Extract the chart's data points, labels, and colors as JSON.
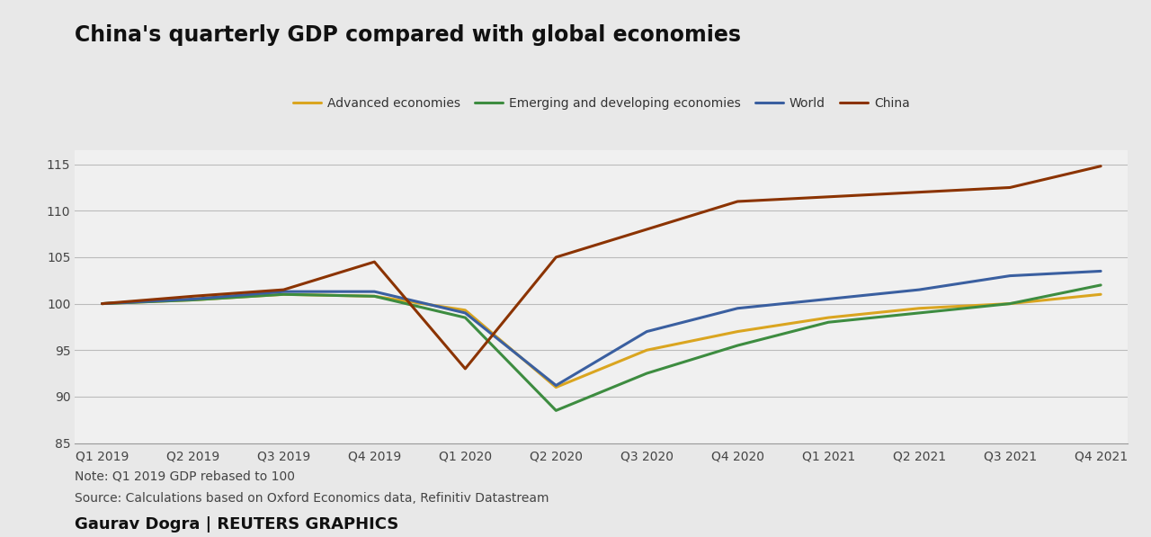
{
  "title": "China's quarterly GDP compared with global economies",
  "x_labels": [
    "Q1 2019",
    "Q2 2019",
    "Q3 2019",
    "Q4 2019",
    "Q1 2020",
    "Q2 2020",
    "Q3 2020",
    "Q4 2020",
    "Q1 2021",
    "Q2 2021",
    "Q3 2021",
    "Q4 2021"
  ],
  "series": {
    "Advanced economies": {
      "color": "#DAA520",
      "values": [
        100.0,
        100.4,
        101.0,
        100.8,
        99.3,
        91.0,
        95.0,
        97.0,
        98.5,
        99.5,
        100.0,
        101.0
      ]
    },
    "Emerging and developing economies": {
      "color": "#3d8c40",
      "values": [
        100.0,
        100.4,
        101.0,
        100.8,
        98.5,
        88.5,
        92.5,
        95.5,
        98.0,
        99.0,
        100.0,
        102.0
      ]
    },
    "World": {
      "color": "#3a5fa0",
      "values": [
        100.0,
        100.5,
        101.3,
        101.3,
        99.0,
        91.2,
        97.0,
        99.5,
        100.5,
        101.5,
        103.0,
        103.5
      ]
    },
    "China": {
      "color": "#8B3300",
      "values": [
        100.0,
        100.8,
        101.5,
        104.5,
        93.0,
        105.0,
        108.0,
        111.0,
        111.5,
        112.0,
        112.5,
        114.8
      ]
    }
  },
  "ylim": [
    85,
    116.5
  ],
  "yticks": [
    85,
    90,
    95,
    100,
    105,
    110,
    115
  ],
  "legend_order": [
    "Advanced economies",
    "Emerging and developing economies",
    "World",
    "China"
  ],
  "note_line1": "Note: Q1 2019 GDP rebased to 100",
  "note_line2": "Source: Calculations based on Oxford Economics data, Refinitiv Datastream",
  "note_line3": "Gaurav Dogra | REUTERS GRAPHICS",
  "background_color": "#e8e8e8",
  "plot_background_color": "#f0f0f0",
  "linewidth": 2.2,
  "title_fontsize": 17,
  "legend_fontsize": 10,
  "tick_fontsize": 10,
  "note_fontsize": 10,
  "note3_fontsize": 13
}
